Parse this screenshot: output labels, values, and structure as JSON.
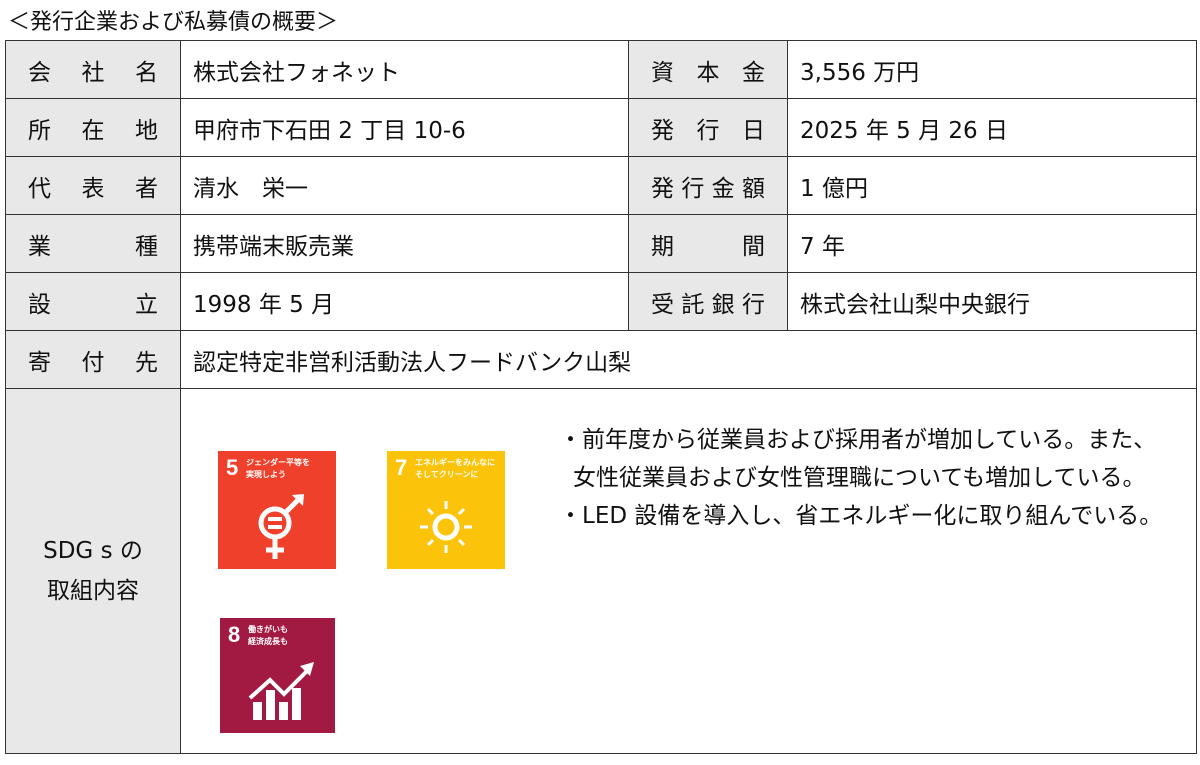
{
  "title": "＜発行企業および私募債の概要＞",
  "rows": [
    {
      "l1": "会社名",
      "v1": "株式会社フォネット",
      "l2": "資本金",
      "v2": "3,556 万円"
    },
    {
      "l1": "所在地",
      "v1": "甲府市下石田 2 丁目 10-6",
      "l2": "発行日",
      "v2": "2025 年 5 月 26 日"
    },
    {
      "l1": "代表者",
      "v1": "清水　栄一",
      "l2": "発行金額",
      "v2": "1 億円"
    },
    {
      "l1": "業種",
      "v1": "携帯端末販売業",
      "l2": "期間",
      "v2": "7 年"
    },
    {
      "l1": "設立",
      "v1": "1998 年 5 月",
      "l2": "受託銀行",
      "v2": "株式会社山梨中央銀行"
    }
  ],
  "donation": {
    "label": "寄付先",
    "value": "認定特定非営利活動法人フードバンク山梨"
  },
  "sdgs": {
    "label_line1": "SDG s の",
    "label_line2": "取組内容",
    "icons": [
      {
        "number": "5",
        "caption1": "ジェンダー平等を",
        "caption2": "実現しよう",
        "color": "#EF402B",
        "icon": "gender-equality-icon"
      },
      {
        "number": "7",
        "caption1": "エネルギーをみんなに",
        "caption2": "そしてクリーンに",
        "color": "#FCC30B",
        "icon": "clean-energy-icon"
      },
      {
        "number": "8",
        "caption1": "働きがいも",
        "caption2": "経済成長も",
        "color": "#A21942",
        "icon": "economic-growth-icon"
      }
    ],
    "bullets": [
      "・前年度から従業員および採用者が増加している。また、女性従業員および女性管理職についても増加している。",
      "・LED 設備を導入し、省エネルギー化に取り組んでいる。"
    ]
  }
}
